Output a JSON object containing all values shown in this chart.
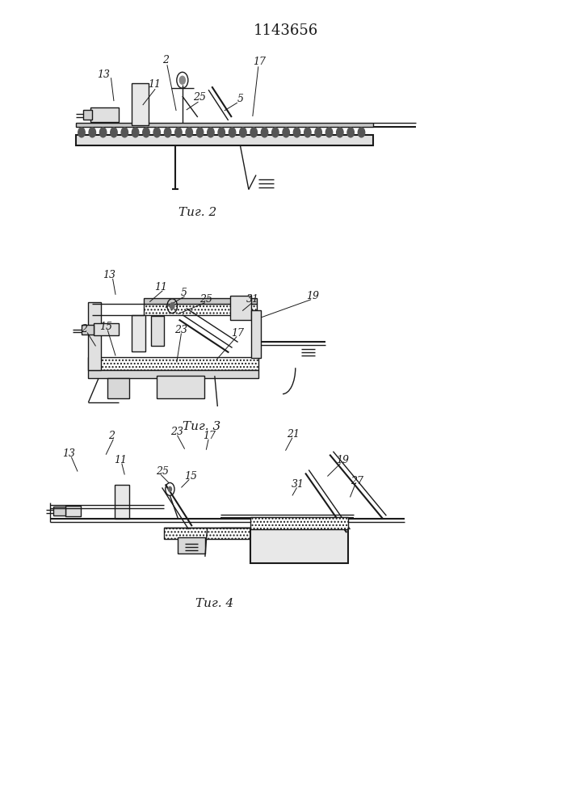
{
  "title": "1143656",
  "title_fontsize": 13,
  "fig2_label": "Τиг. 2",
  "fig3_label": "Τиг. 3",
  "fig4_label": "Τиг. 4",
  "bg_color": "#ffffff",
  "line_color": "#1a1a1a"
}
